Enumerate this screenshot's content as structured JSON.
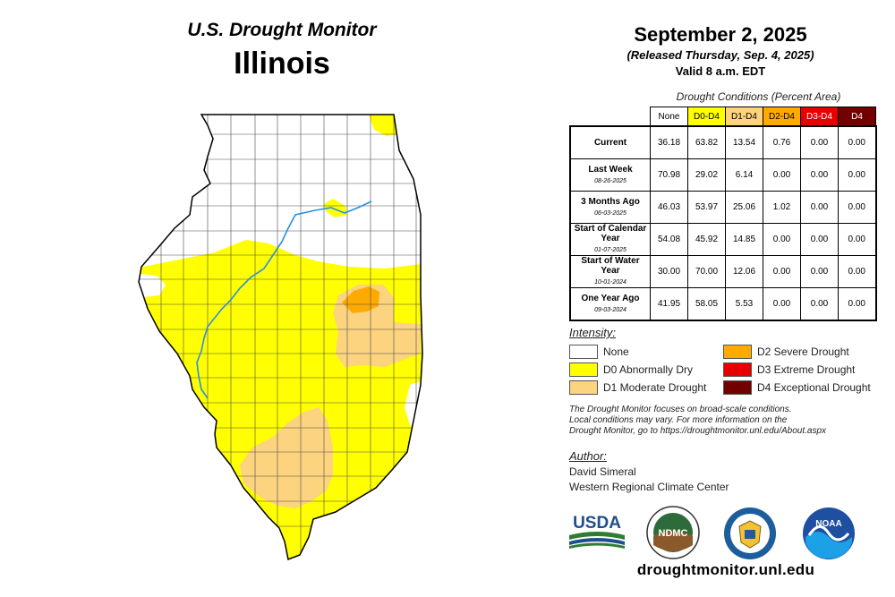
{
  "header": {
    "title_line1": "U.S. Drought Monitor",
    "title_line2": "Illinois",
    "date": "September 2, 2025",
    "released": "(Released Thursday, Sep. 4, 2025)",
    "valid": "Valid 8 a.m. EDT"
  },
  "table": {
    "caption": "Drought Conditions (Percent Area)",
    "columns": [
      {
        "label": "None",
        "color": "#ffffff"
      },
      {
        "label": "D0-D4",
        "color": "#ffff00"
      },
      {
        "label": "D1-D4",
        "color": "#fcd37f"
      },
      {
        "label": "D2-D4",
        "color": "#ffaa00"
      },
      {
        "label": "D3-D4",
        "color": "#e60000"
      },
      {
        "label": "D4",
        "color": "#730000"
      }
    ],
    "rows": [
      {
        "label": "Current",
        "date": "",
        "values": [
          "36.18",
          "63.82",
          "13.54",
          "0.76",
          "0.00",
          "0.00"
        ]
      },
      {
        "label": "Last Week",
        "date": "08-26-2025",
        "values": [
          "70.98",
          "29.02",
          "6.14",
          "0.00",
          "0.00",
          "0.00"
        ]
      },
      {
        "label": "3 Months Ago",
        "date": "06-03-2025",
        "values": [
          "46.03",
          "53.97",
          "25.06",
          "1.02",
          "0.00",
          "0.00"
        ]
      },
      {
        "label": "Start of Calendar Year",
        "date": "01-07-2025",
        "values": [
          "54.08",
          "45.92",
          "14.85",
          "0.00",
          "0.00",
          "0.00"
        ]
      },
      {
        "label": "Start of Water Year",
        "date": "10-01-2024",
        "values": [
          "30.00",
          "70.00",
          "12.06",
          "0.00",
          "0.00",
          "0.00"
        ]
      },
      {
        "label": "One Year Ago",
        "date": "09-03-2024",
        "values": [
          "41.95",
          "58.05",
          "5.53",
          "0.00",
          "0.00",
          "0.00"
        ]
      }
    ]
  },
  "legend": {
    "title": "Intensity:",
    "items": [
      {
        "label": "None",
        "color": "#ffffff"
      },
      {
        "label": "D0 Abnormally Dry",
        "color": "#ffff00"
      },
      {
        "label": "D1 Moderate Drought",
        "color": "#fcd37f"
      },
      {
        "label": "D2 Severe Drought",
        "color": "#ffaa00"
      },
      {
        "label": "D3 Extreme Drought",
        "color": "#e60000"
      },
      {
        "label": "D4 Exceptional Drought",
        "color": "#730000"
      }
    ]
  },
  "note": {
    "line1": "The Drought Monitor focuses on broad-scale conditions.",
    "line2": "Local conditions may vary. For more information on the",
    "line3": "Drought Monitor, go to https://droughtmonitor.unl.edu/About.aspx"
  },
  "author": {
    "heading": "Author:",
    "name": "David Simeral",
    "org": "Western Regional Climate Center"
  },
  "logos": {
    "usda": "USDA",
    "ndmc": "NDMC",
    "noaa": "NOAA"
  },
  "footer_url": "droughtmonitor.unl.edu"
}
